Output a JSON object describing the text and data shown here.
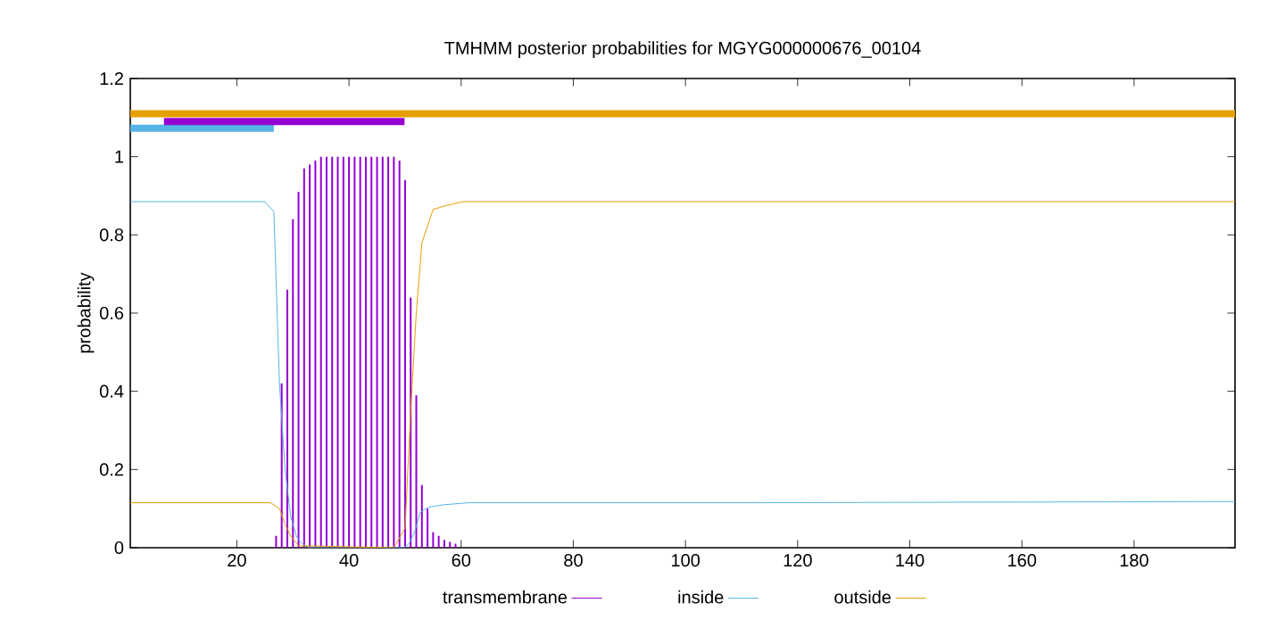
{
  "chart_data": {
    "type": "line",
    "title": "TMHMM posterior probabilities for MGYG000000676_00104",
    "ylabel": "probability",
    "xlim": [
      1,
      198
    ],
    "ylim": [
      0,
      1.2
    ],
    "xticks": [
      20,
      40,
      60,
      80,
      100,
      120,
      140,
      160,
      180
    ],
    "yticks": [
      0,
      0.2,
      0.4,
      0.6,
      0.8,
      1,
      1.2
    ],
    "legend": "bottom",
    "grid": false,
    "marker": "none",
    "series": [
      {
        "name": "transmembrane",
        "type": "bar",
        "color": "#9400d3",
        "x": [
          27,
          28,
          29,
          30,
          31,
          32,
          33,
          34,
          35,
          36,
          37,
          38,
          39,
          40,
          41,
          42,
          43,
          44,
          45,
          46,
          47,
          48,
          49,
          50,
          51,
          52,
          53,
          54,
          55,
          56,
          57,
          58,
          59
        ],
        "values": [
          0.03,
          0.42,
          0.66,
          0.84,
          0.91,
          0.97,
          0.98,
          0.99,
          1,
          1,
          1,
          1,
          1,
          1,
          1,
          1,
          1,
          1,
          1,
          1,
          1,
          1,
          0.99,
          0.94,
          0.64,
          0.39,
          0.16,
          0.1,
          0.04,
          0.03,
          0.02,
          0.015,
          0.01
        ]
      },
      {
        "name": "inside",
        "color": "#56b4e9",
        "x": [
          1,
          25,
          26.6,
          27.6,
          28.6,
          29.6,
          30.6,
          31.6,
          33,
          48,
          49.7,
          50.7,
          51.7,
          52.7,
          53.7,
          54.7,
          57,
          61.5,
          113,
          198
        ],
        "values": [
          0.885,
          0.885,
          0.86,
          0.42,
          0.2,
          0.08,
          0.03,
          0.01,
          0,
          0,
          0,
          0.01,
          0.04,
          0.09,
          0.1,
          0.105,
          0.11,
          0.115,
          0.115,
          0.118
        ]
      },
      {
        "name": "outside",
        "color": "#e69f00",
        "x": [
          1,
          26,
          27.6,
          28.6,
          29.6,
          31,
          48,
          50,
          51,
          52,
          53,
          55,
          57.3,
          60.4,
          198
        ],
        "values": [
          0.115,
          0.115,
          0.1,
          0.06,
          0.03,
          0.005,
          0,
          0.05,
          0.35,
          0.6,
          0.78,
          0.865,
          0.875,
          0.885,
          0.885
        ]
      },
      {
        "color": "#e69f00",
        "x": [
          1,
          198
        ],
        "values": [
          1.11,
          1.11
        ]
      },
      {
        "color": "#56b4e9",
        "x": [
          1,
          26.6
        ],
        "values": [
          1.073,
          1.073
        ]
      },
      {
        "color": "#9400d3",
        "x": [
          7,
          49.9
        ],
        "values": [
          1.09,
          1.09
        ]
      }
    ]
  }
}
